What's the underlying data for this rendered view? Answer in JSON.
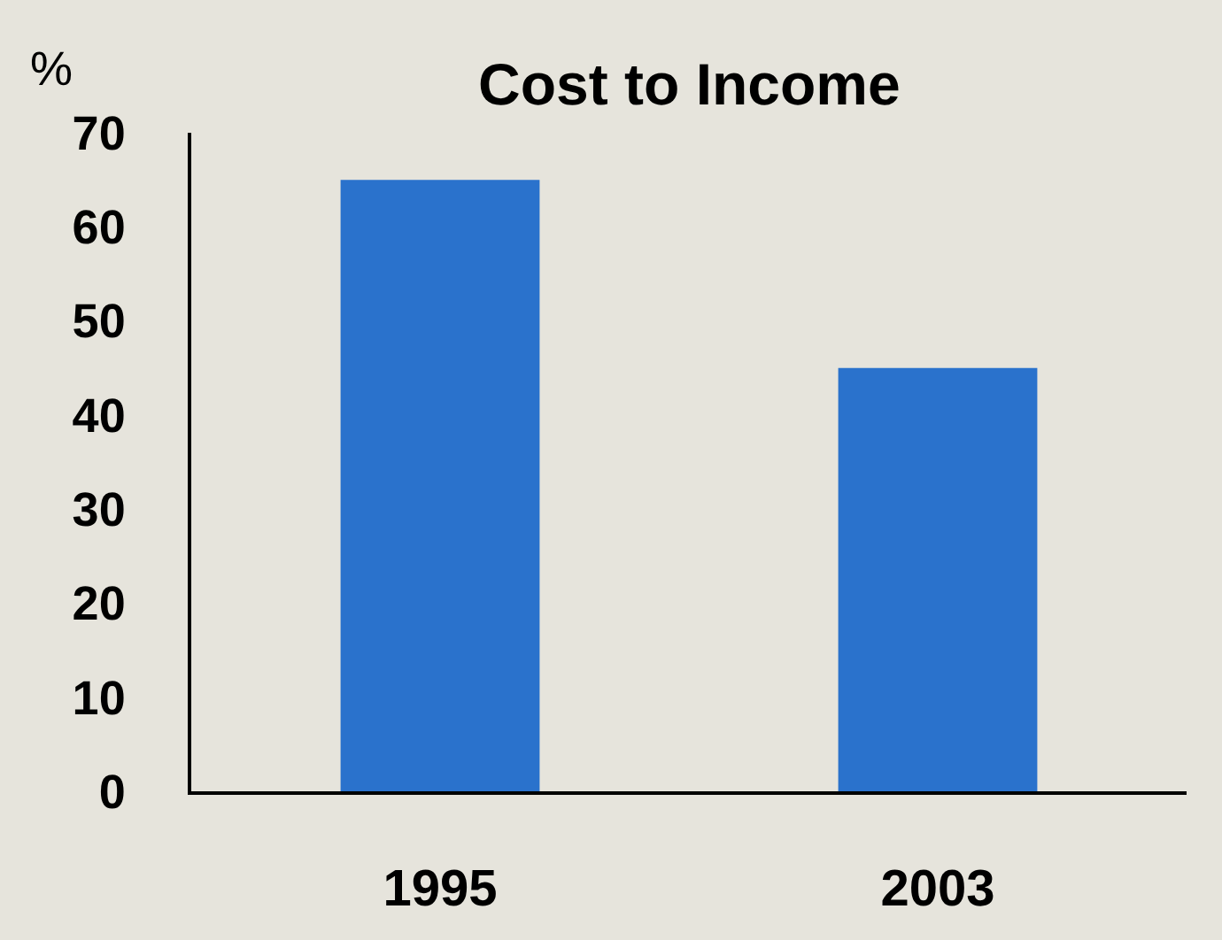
{
  "chart_data": {
    "type": "bar",
    "title": "Cost to Income",
    "ylabel": "%",
    "categories": [
      "1995",
      "2003"
    ],
    "values": [
      65,
      45
    ],
    "color": "#2a72cc",
    "ylim": [
      0,
      70
    ],
    "yticks": [
      0,
      10,
      20,
      30,
      40,
      50,
      60,
      70
    ],
    "grid": false
  }
}
